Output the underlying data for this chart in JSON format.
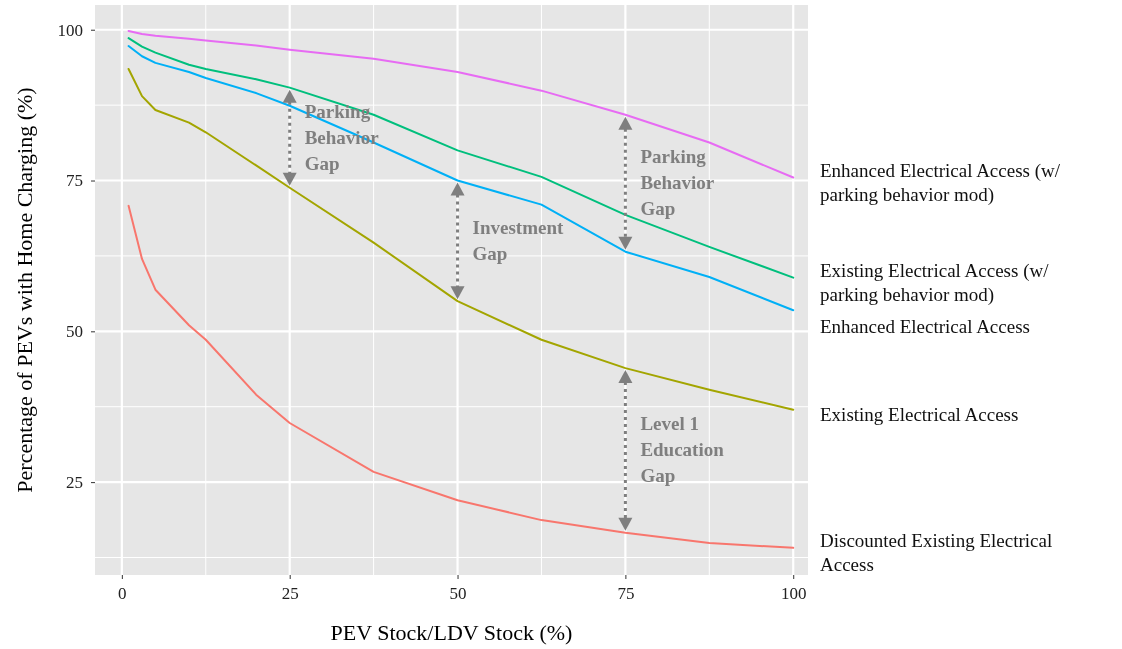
{
  "chart_data": {
    "type": "line",
    "xlabel": "PEV Stock/LDV Stock (%)",
    "ylabel": "Percentage of PEVs with Home Charging (%)",
    "x": [
      1,
      3,
      5,
      10,
      12.5,
      20,
      25,
      37.5,
      50,
      62.5,
      75,
      87.5,
      100
    ],
    "series": [
      {
        "name": "Enhanced Electrical Access (w/ parking behavior mod)",
        "color": "#e76bf3",
        "values": [
          99.8,
          99.3,
          99,
          98.5,
          98.2,
          97.4,
          96.7,
          95.2,
          93,
          89.9,
          85.9,
          81.3,
          75.5
        ]
      },
      {
        "name": "Existing Electrical Access (w/ parking behavior mod)",
        "color": "#00bf7d",
        "values": [
          98.6,
          97.2,
          96.2,
          94.2,
          93.5,
          91.8,
          90.4,
          85.9,
          80,
          75.6,
          69.3,
          64,
          58.9
        ]
      },
      {
        "name": "Enhanced Electrical Access",
        "color": "#00b0f6",
        "values": [
          97.3,
          95.6,
          94.5,
          93,
          92,
          89.5,
          87.4,
          81.3,
          75,
          71,
          63.2,
          59,
          53.5
        ]
      },
      {
        "name": "Existing Electrical Access",
        "color": "#a3a500",
        "values": [
          93.5,
          89,
          86.7,
          84.6,
          83,
          77.5,
          73.8,
          64.7,
          55,
          48.6,
          43.9,
          40.3,
          37
        ]
      },
      {
        "name": "Discounted Existing Electrical Access",
        "color": "#f8766d",
        "values": [
          70.8,
          62,
          56.9,
          51,
          48.6,
          39.5,
          34.8,
          26.7,
          22,
          18.7,
          16.6,
          14.9,
          14.1
        ]
      }
    ],
    "xlim": [
      -4,
      102.2
    ],
    "ylim": [
      9.6,
      104.1
    ],
    "xticks": [
      0,
      25,
      50,
      75,
      100
    ],
    "yticks": [
      25,
      50,
      75,
      100
    ],
    "grid": true,
    "legend": "right",
    "line_style": "solid",
    "annotations": [
      {
        "text": "Parking Behavior Gap",
        "x": 25,
        "y": 90.4
      },
      {
        "text": "Investment Gap",
        "x": 50,
        "y": 75
      },
      {
        "text": "Parking Behavior Gap",
        "x": 75,
        "y": 85.9
      },
      {
        "text": "Level 1 Education Gap",
        "x": 75,
        "y": 43.9
      }
    ]
  }
}
